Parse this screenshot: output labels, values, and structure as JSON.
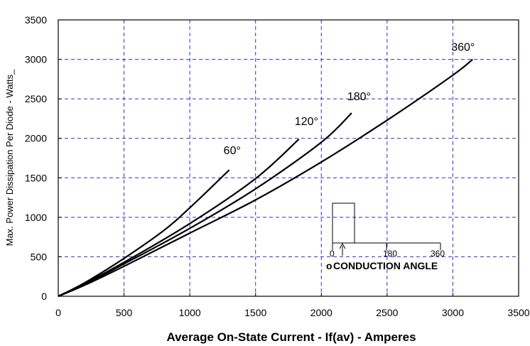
{
  "chart_data": {
    "type": "line",
    "title": "",
    "xlabel": "Average On-State Current - If(av) - Amperes",
    "ylabel": "Max. Power Dissipation Per Diode - Watts_",
    "xlim": [
      0,
      3500
    ],
    "ylim": [
      0,
      3500
    ],
    "x_ticks": [
      "0",
      "500",
      "1000",
      "1500",
      "2000",
      "2500",
      "3000",
      "3500"
    ],
    "y_ticks": [
      "0",
      "500",
      "1000",
      "1500",
      "2000",
      "2500",
      "3000",
      "3500"
    ],
    "grid": true,
    "series": [
      {
        "name": "60°",
        "x": [
          0,
          200,
          500,
          800,
          1000,
          1300
        ],
        "y": [
          0,
          170,
          480,
          830,
          1120,
          1600
        ]
      },
      {
        "name": "120°",
        "x": [
          0,
          200,
          500,
          1000,
          1500,
          1830
        ],
        "y": [
          0,
          160,
          430,
          920,
          1490,
          1990
        ]
      },
      {
        "name": "180°",
        "x": [
          0,
          200,
          500,
          1000,
          1500,
          2000,
          2230
        ],
        "y": [
          0,
          150,
          410,
          860,
          1360,
          1950,
          2320
        ]
      },
      {
        "name": "360°",
        "x": [
          0,
          200,
          500,
          1000,
          1500,
          2000,
          2500,
          3000,
          3150
        ],
        "y": [
          0,
          140,
          380,
          800,
          1220,
          1700,
          2230,
          2800,
          3000
        ]
      }
    ],
    "inset": {
      "title": "CONDUCTION ANGLE",
      "marker": "o",
      "ticks": [
        "0",
        "180",
        "360"
      ]
    }
  }
}
